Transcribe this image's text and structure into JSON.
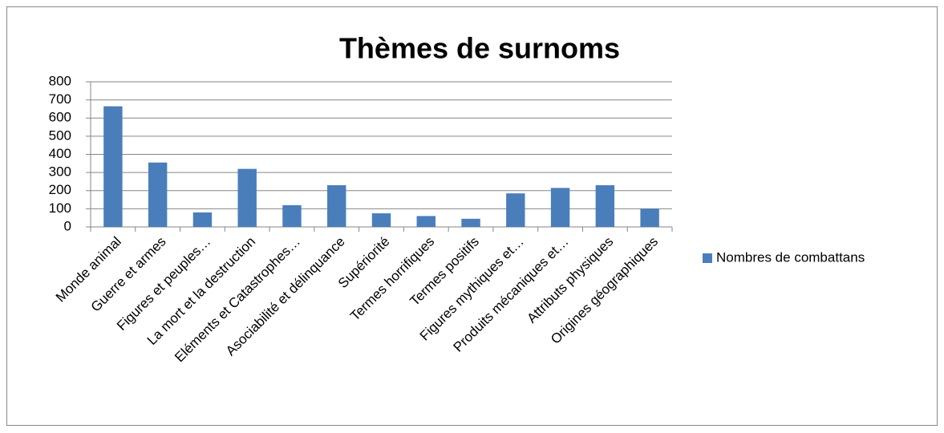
{
  "chart_data": {
    "type": "bar",
    "title": "Thèmes de surnoms",
    "categories": [
      "Monde animal",
      "Guerre et armes",
      "Figures et peuples…",
      "La mort et la destruction",
      "Eléments et Catastrophes…",
      "Asociabilité et délinquance",
      "Supériorité",
      "Termes horrifiques",
      "Termes positifs",
      "Figures mythiques et…",
      "Produits mécaniques et…",
      "Attributs physiques",
      "Origines géographiques"
    ],
    "series": [
      {
        "name": "Nombres de combattans",
        "color": "#4a7ebb",
        "values": [
          665,
          355,
          80,
          320,
          120,
          230,
          75,
          60,
          45,
          185,
          215,
          230,
          100
        ]
      }
    ],
    "ylim": [
      0,
      800
    ],
    "yticks": [
      0,
      100,
      200,
      300,
      400,
      500,
      600,
      700,
      800
    ],
    "grid": true,
    "legend": "right"
  }
}
